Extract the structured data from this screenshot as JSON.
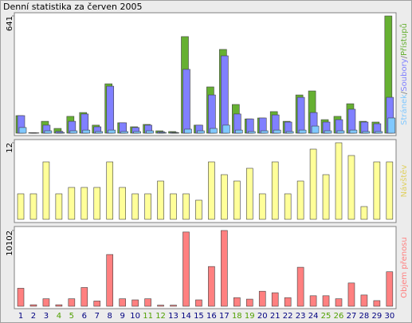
{
  "chart_data": [
    {
      "type": "bar",
      "title": "Denní statistika za červen 2005",
      "legend_separator": "/",
      "ylim": [
        0,
        641
      ],
      "yticks": [
        641
      ],
      "series": [
        {
          "name": "Přístupů",
          "color": "#66b032",
          "values": [
            96,
            3,
            65,
            26,
            92,
            113,
            44,
            270,
            57,
            35,
            48,
            13,
            9,
            528,
            44,
            253,
            458,
            157,
            78,
            83,
            118,
            65,
            209,
            231,
            74,
            92,
            161,
            65,
            61,
            641
          ]
        },
        {
          "name": "Soubory",
          "color": "#8080ff",
          "values": [
            96,
            2,
            44,
            10,
            65,
            105,
            35,
            257,
            57,
            31,
            44,
            8,
            5,
            349,
            44,
            209,
            423,
            105,
            78,
            83,
            100,
            61,
            196,
            113,
            61,
            74,
            131,
            61,
            52,
            196
          ]
        },
        {
          "name": "Stránek",
          "color": "#80c8ff",
          "values": [
            31,
            2,
            13,
            4,
            13,
            17,
            9,
            17,
            9,
            9,
            13,
            4,
            3,
            22,
            13,
            26,
            44,
            17,
            9,
            13,
            17,
            9,
            17,
            39,
            13,
            13,
            17,
            9,
            9,
            83
          ]
        }
      ]
    },
    {
      "type": "bar",
      "ylim": [
        0,
        12
      ],
      "yticks": [
        12
      ],
      "series": [
        {
          "name": "Návštěv",
          "color": "#ffff99",
          "label_color": "#e0d060",
          "values": [
            4,
            4,
            9,
            4,
            5,
            5,
            5,
            9,
            5,
            4,
            4,
            6,
            4,
            4,
            3,
            9,
            7,
            6,
            8,
            4,
            9,
            4,
            6,
            11,
            7,
            12,
            10,
            2,
            9,
            9
          ]
        }
      ]
    },
    {
      "type": "bar",
      "ylim": [
        0,
        10102
      ],
      "yticks": [
        10102
      ],
      "series": [
        {
          "name": "Objem přenosu",
          "color": "#ff8080",
          "values": [
            2400,
            200,
            1000,
            200,
            1000,
            2500,
            700,
            6900,
            1000,
            850,
            1000,
            150,
            150,
            9900,
            850,
            5300,
            10102,
            1150,
            950,
            2000,
            1800,
            1150,
            5200,
            1400,
            1400,
            1000,
            3100,
            1500,
            750,
            4600
          ]
        }
      ],
      "categories": [
        "1",
        "2",
        "3",
        "4",
        "5",
        "6",
        "7",
        "8",
        "9",
        "10",
        "11",
        "12",
        "13",
        "14",
        "15",
        "16",
        "17",
        "18",
        "19",
        "20",
        "21",
        "22",
        "23",
        "24",
        "25",
        "26",
        "27",
        "28",
        "29",
        "30"
      ],
      "label_colors": [
        "#000080",
        "#000080",
        "#000080",
        "#50a000",
        "#50a000",
        "#000080",
        "#000080",
        "#000080",
        "#000080",
        "#000080",
        "#50a000",
        "#50a000",
        "#000080",
        "#000080",
        "#000080",
        "#000080",
        "#000080",
        "#50a000",
        "#50a000",
        "#000080",
        "#000080",
        "#000080",
        "#000080",
        "#000080",
        "#50a000",
        "#50a000",
        "#000080",
        "#000080",
        "#000080",
        "#000080"
      ]
    }
  ]
}
